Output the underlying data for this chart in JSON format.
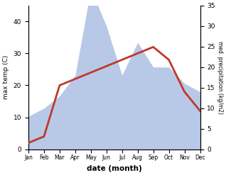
{
  "months": [
    "Jan",
    "Feb",
    "Mar",
    "Apr",
    "May",
    "Jun",
    "Jul",
    "Aug",
    "Sep",
    "Oct",
    "Nov",
    "Dec"
  ],
  "month_indices": [
    1,
    2,
    3,
    4,
    5,
    6,
    7,
    8,
    9,
    10,
    11,
    12
  ],
  "temp": [
    2,
    4,
    20,
    22,
    24,
    26,
    28,
    30,
    32,
    28,
    18,
    12
  ],
  "precip": [
    8,
    10,
    13,
    18,
    39,
    30,
    18,
    26,
    20,
    20,
    16,
    14
  ],
  "temp_color": "#c0392b",
  "precip_color_fill": "#b8c9e8",
  "title": "",
  "xlabel": "date (month)",
  "ylabel_left": "max temp (C)",
  "ylabel_right": "med. precipitation (kg/m2)",
  "ylim_left": [
    0,
    45
  ],
  "ylim_right": [
    0,
    35
  ],
  "yticks_left": [
    0,
    10,
    20,
    30,
    40
  ],
  "yticks_right": [
    0,
    5,
    10,
    15,
    20,
    25,
    30,
    35
  ],
  "bg_color": "#ffffff",
  "line_width": 2.0
}
